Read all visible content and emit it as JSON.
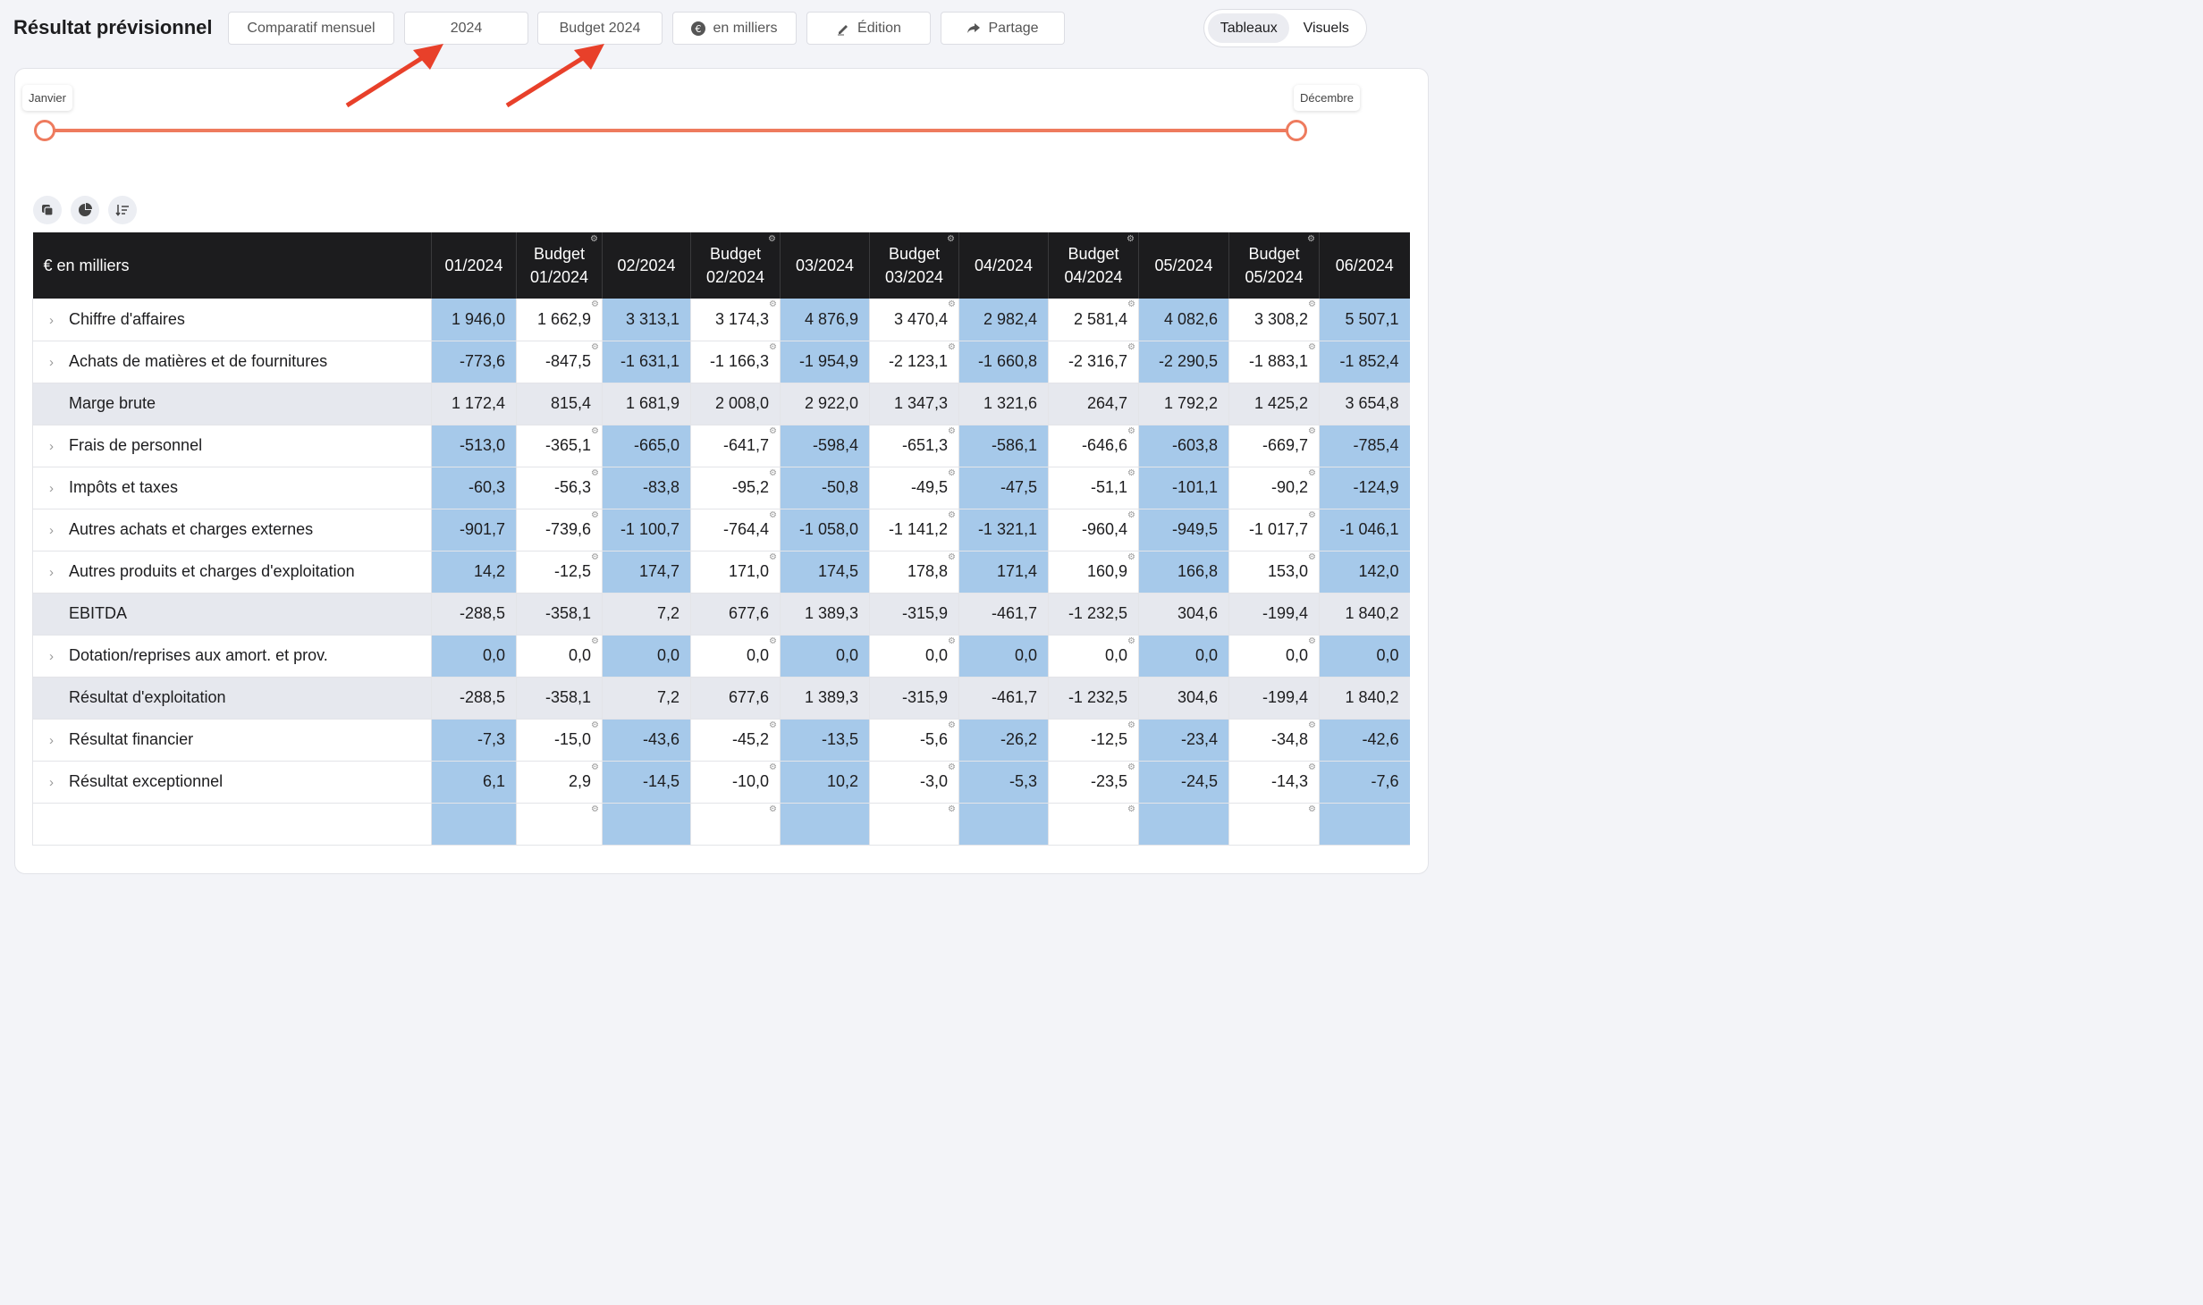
{
  "header": {
    "title": "Résultat prévisionnel",
    "buttons": {
      "comparatif": "Comparatif mensuel",
      "year": "2024",
      "budget": "Budget 2024",
      "unit": "en milliers",
      "edition": "Édition",
      "partage": "Partage"
    },
    "view_toggle": {
      "tableaux": "Tableaux",
      "visuels": "Visuels",
      "active": "Tableaux"
    }
  },
  "range": {
    "start": "Janvier",
    "end": "Décembre"
  },
  "colors": {
    "accent": "#ee7b5e",
    "actual_cell": "#a6c9ea",
    "header_bg": "#1c1c1e",
    "arrow": "#e8402a"
  },
  "table": {
    "corner": "€ en milliers",
    "columns": [
      {
        "l1": "01/2024",
        "l2": "",
        "budget": false
      },
      {
        "l1": "Budget",
        "l2": "01/2024",
        "budget": true
      },
      {
        "l1": "02/2024",
        "l2": "",
        "budget": false
      },
      {
        "l1": "Budget",
        "l2": "02/2024",
        "budget": true
      },
      {
        "l1": "03/2024",
        "l2": "",
        "budget": false
      },
      {
        "l1": "Budget",
        "l2": "03/2024",
        "budget": true
      },
      {
        "l1": "04/2024",
        "l2": "",
        "budget": false
      },
      {
        "l1": "Budget",
        "l2": "04/2024",
        "budget": true
      },
      {
        "l1": "05/2024",
        "l2": "",
        "budget": false
      },
      {
        "l1": "Budget",
        "l2": "05/2024",
        "budget": true
      },
      {
        "l1": "06/2024",
        "l2": "",
        "budget": false
      }
    ],
    "rows": [
      {
        "label": "Chiffre d'affaires",
        "subtotal": false,
        "values": [
          "1 946,0",
          "1 662,9",
          "3 313,1",
          "3 174,3",
          "4 876,9",
          "3 470,4",
          "2 982,4",
          "2 581,4",
          "4 082,6",
          "3 308,2",
          "5 507,1"
        ]
      },
      {
        "label": "Achats de matières et de fournitures",
        "subtotal": false,
        "values": [
          "-773,6",
          "-847,5",
          "-1 631,1",
          "-1 166,3",
          "-1 954,9",
          "-2 123,1",
          "-1 660,8",
          "-2 316,7",
          "-2 290,5",
          "-1 883,1",
          "-1 852,4"
        ]
      },
      {
        "label": "Marge brute",
        "subtotal": true,
        "values": [
          "1 172,4",
          "815,4",
          "1 681,9",
          "2 008,0",
          "2 922,0",
          "1 347,3",
          "1 321,6",
          "264,7",
          "1 792,2",
          "1 425,2",
          "3 654,8"
        ]
      },
      {
        "label": "Frais de personnel",
        "subtotal": false,
        "values": [
          "-513,0",
          "-365,1",
          "-665,0",
          "-641,7",
          "-598,4",
          "-651,3",
          "-586,1",
          "-646,6",
          "-603,8",
          "-669,7",
          "-785,4"
        ]
      },
      {
        "label": "Impôts et taxes",
        "subtotal": false,
        "values": [
          "-60,3",
          "-56,3",
          "-83,8",
          "-95,2",
          "-50,8",
          "-49,5",
          "-47,5",
          "-51,1",
          "-101,1",
          "-90,2",
          "-124,9"
        ]
      },
      {
        "label": "Autres achats et charges externes",
        "subtotal": false,
        "values": [
          "-901,7",
          "-739,6",
          "-1 100,7",
          "-764,4",
          "-1 058,0",
          "-1 141,2",
          "-1 321,1",
          "-960,4",
          "-949,5",
          "-1 017,7",
          "-1 046,1"
        ]
      },
      {
        "label": "Autres produits et charges d'exploitation",
        "subtotal": false,
        "values": [
          "14,2",
          "-12,5",
          "174,7",
          "171,0",
          "174,5",
          "178,8",
          "171,4",
          "160,9",
          "166,8",
          "153,0",
          "142,0"
        ]
      },
      {
        "label": "EBITDA",
        "subtotal": true,
        "values": [
          "-288,5",
          "-358,1",
          "7,2",
          "677,6",
          "1 389,3",
          "-315,9",
          "-461,7",
          "-1 232,5",
          "304,6",
          "-199,4",
          "1 840,2"
        ]
      },
      {
        "label": "Dotation/reprises aux amort. et prov.",
        "subtotal": false,
        "values": [
          "0,0",
          "0,0",
          "0,0",
          "0,0",
          "0,0",
          "0,0",
          "0,0",
          "0,0",
          "0,0",
          "0,0",
          "0,0"
        ]
      },
      {
        "label": "Résultat d'exploitation",
        "subtotal": true,
        "values": [
          "-288,5",
          "-358,1",
          "7,2",
          "677,6",
          "1 389,3",
          "-315,9",
          "-461,7",
          "-1 232,5",
          "304,6",
          "-199,4",
          "1 840,2"
        ]
      },
      {
        "label": "Résultat financier",
        "subtotal": false,
        "values": [
          "-7,3",
          "-15,0",
          "-43,6",
          "-45,2",
          "-13,5",
          "-5,6",
          "-26,2",
          "-12,5",
          "-23,4",
          "-34,8",
          "-42,6"
        ]
      },
      {
        "label": "Résultat exceptionnel",
        "subtotal": false,
        "values": [
          "6,1",
          "2,9",
          "-14,5",
          "-10,0",
          "10,2",
          "-3,0",
          "-5,3",
          "-23,5",
          "-24,5",
          "-14,3",
          "-7,6"
        ]
      },
      {
        "label": "",
        "subtotal": false,
        "values": [
          "",
          "",
          "",
          "",
          "",
          "",
          "",
          "",
          "",
          "",
          ""
        ]
      }
    ]
  }
}
